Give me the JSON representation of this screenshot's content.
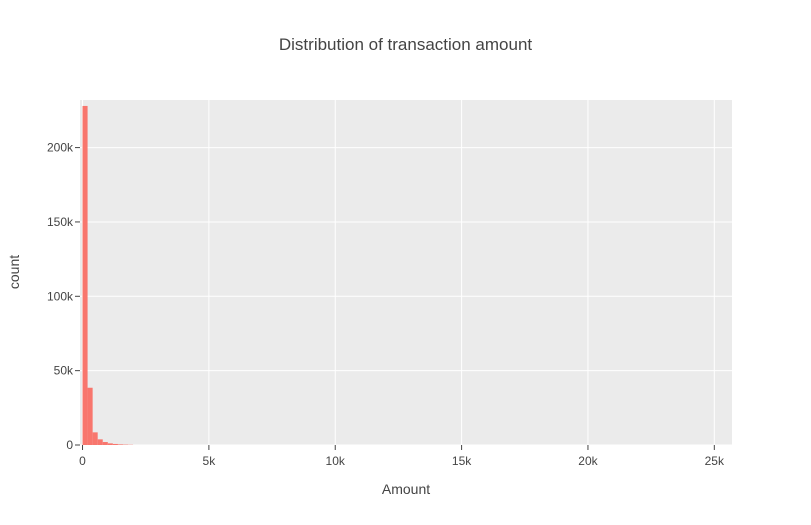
{
  "chart_data": {
    "type": "bar",
    "title": "Distribution of transaction amount",
    "xlabel": "Amount",
    "ylabel": "count",
    "xlim": [
      -100,
      25700
    ],
    "ylim": [
      0,
      232000
    ],
    "x_ticks": [
      0,
      5000,
      10000,
      15000,
      20000,
      25000
    ],
    "x_tick_labels": [
      "0",
      "5k",
      "10k",
      "15k",
      "20k",
      "25k"
    ],
    "y_ticks": [
      0,
      50000,
      100000,
      150000,
      200000
    ],
    "y_tick_labels": [
      "0",
      "50k",
      "100k",
      "150k",
      "200k"
    ],
    "bin_width": 200,
    "bins": [
      {
        "x0": 0,
        "x1": 200,
        "count": 228000
      },
      {
        "x0": 200,
        "x1": 400,
        "count": 38500
      },
      {
        "x0": 400,
        "x1": 600,
        "count": 8500
      },
      {
        "x0": 600,
        "x1": 800,
        "count": 3800
      },
      {
        "x0": 800,
        "x1": 1000,
        "count": 2000
      },
      {
        "x0": 1000,
        "x1": 1200,
        "count": 1100
      },
      {
        "x0": 1200,
        "x1": 1400,
        "count": 700
      },
      {
        "x0": 1400,
        "x1": 1600,
        "count": 400
      },
      {
        "x0": 1600,
        "x1": 1800,
        "count": 250
      },
      {
        "x0": 1800,
        "x1": 2000,
        "count": 150
      }
    ],
    "bar_color": "#f8766d",
    "plot_background": "#ebebeb",
    "grid_color": "#ffffff",
    "grid": true,
    "legend": "none"
  }
}
